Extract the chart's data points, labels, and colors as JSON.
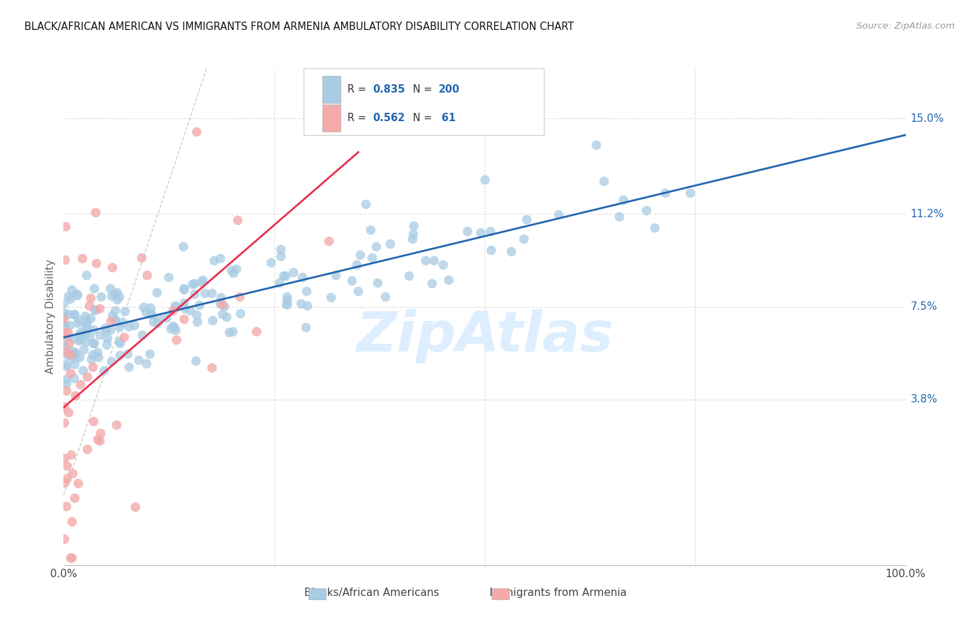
{
  "title": "BLACK/AFRICAN AMERICAN VS IMMIGRANTS FROM ARMENIA AMBULATORY DISABILITY CORRELATION CHART",
  "source": "Source: ZipAtlas.com",
  "ylabel": "Ambulatory Disability",
  "xlim": [
    0.0,
    1.0
  ],
  "ylim": [
    -0.028,
    0.17
  ],
  "yticks": [
    0.038,
    0.075,
    0.112,
    0.15
  ],
  "ytick_labels": [
    "3.8%",
    "7.5%",
    "11.2%",
    "15.0%"
  ],
  "xtick_labels_show": [
    "0.0%",
    "100.0%"
  ],
  "blue_scatter_color": "#a8cce4",
  "pink_scatter_color": "#f4aaaa",
  "blue_line_color": "#2467b0",
  "pink_line_color": "#e83050",
  "diag_color": "#cccccc",
  "grid_color": "#e0e0e0",
  "legend_blue_label": "Blacks/African Americans",
  "legend_pink_label": "Immigrants from Armenia",
  "R_blue": "0.835",
  "N_blue": "200",
  "R_pink": "0.562",
  "N_pink": " 61",
  "watermark": "ZipAtlas",
  "watermark_color": "#ddeeff",
  "background_color": "#ffffff",
  "title_color": "#111111",
  "source_color": "#999999",
  "ylabel_color": "#666666",
  "tick_label_color": "#2467b0",
  "rn_text_color": "#2467b0"
}
